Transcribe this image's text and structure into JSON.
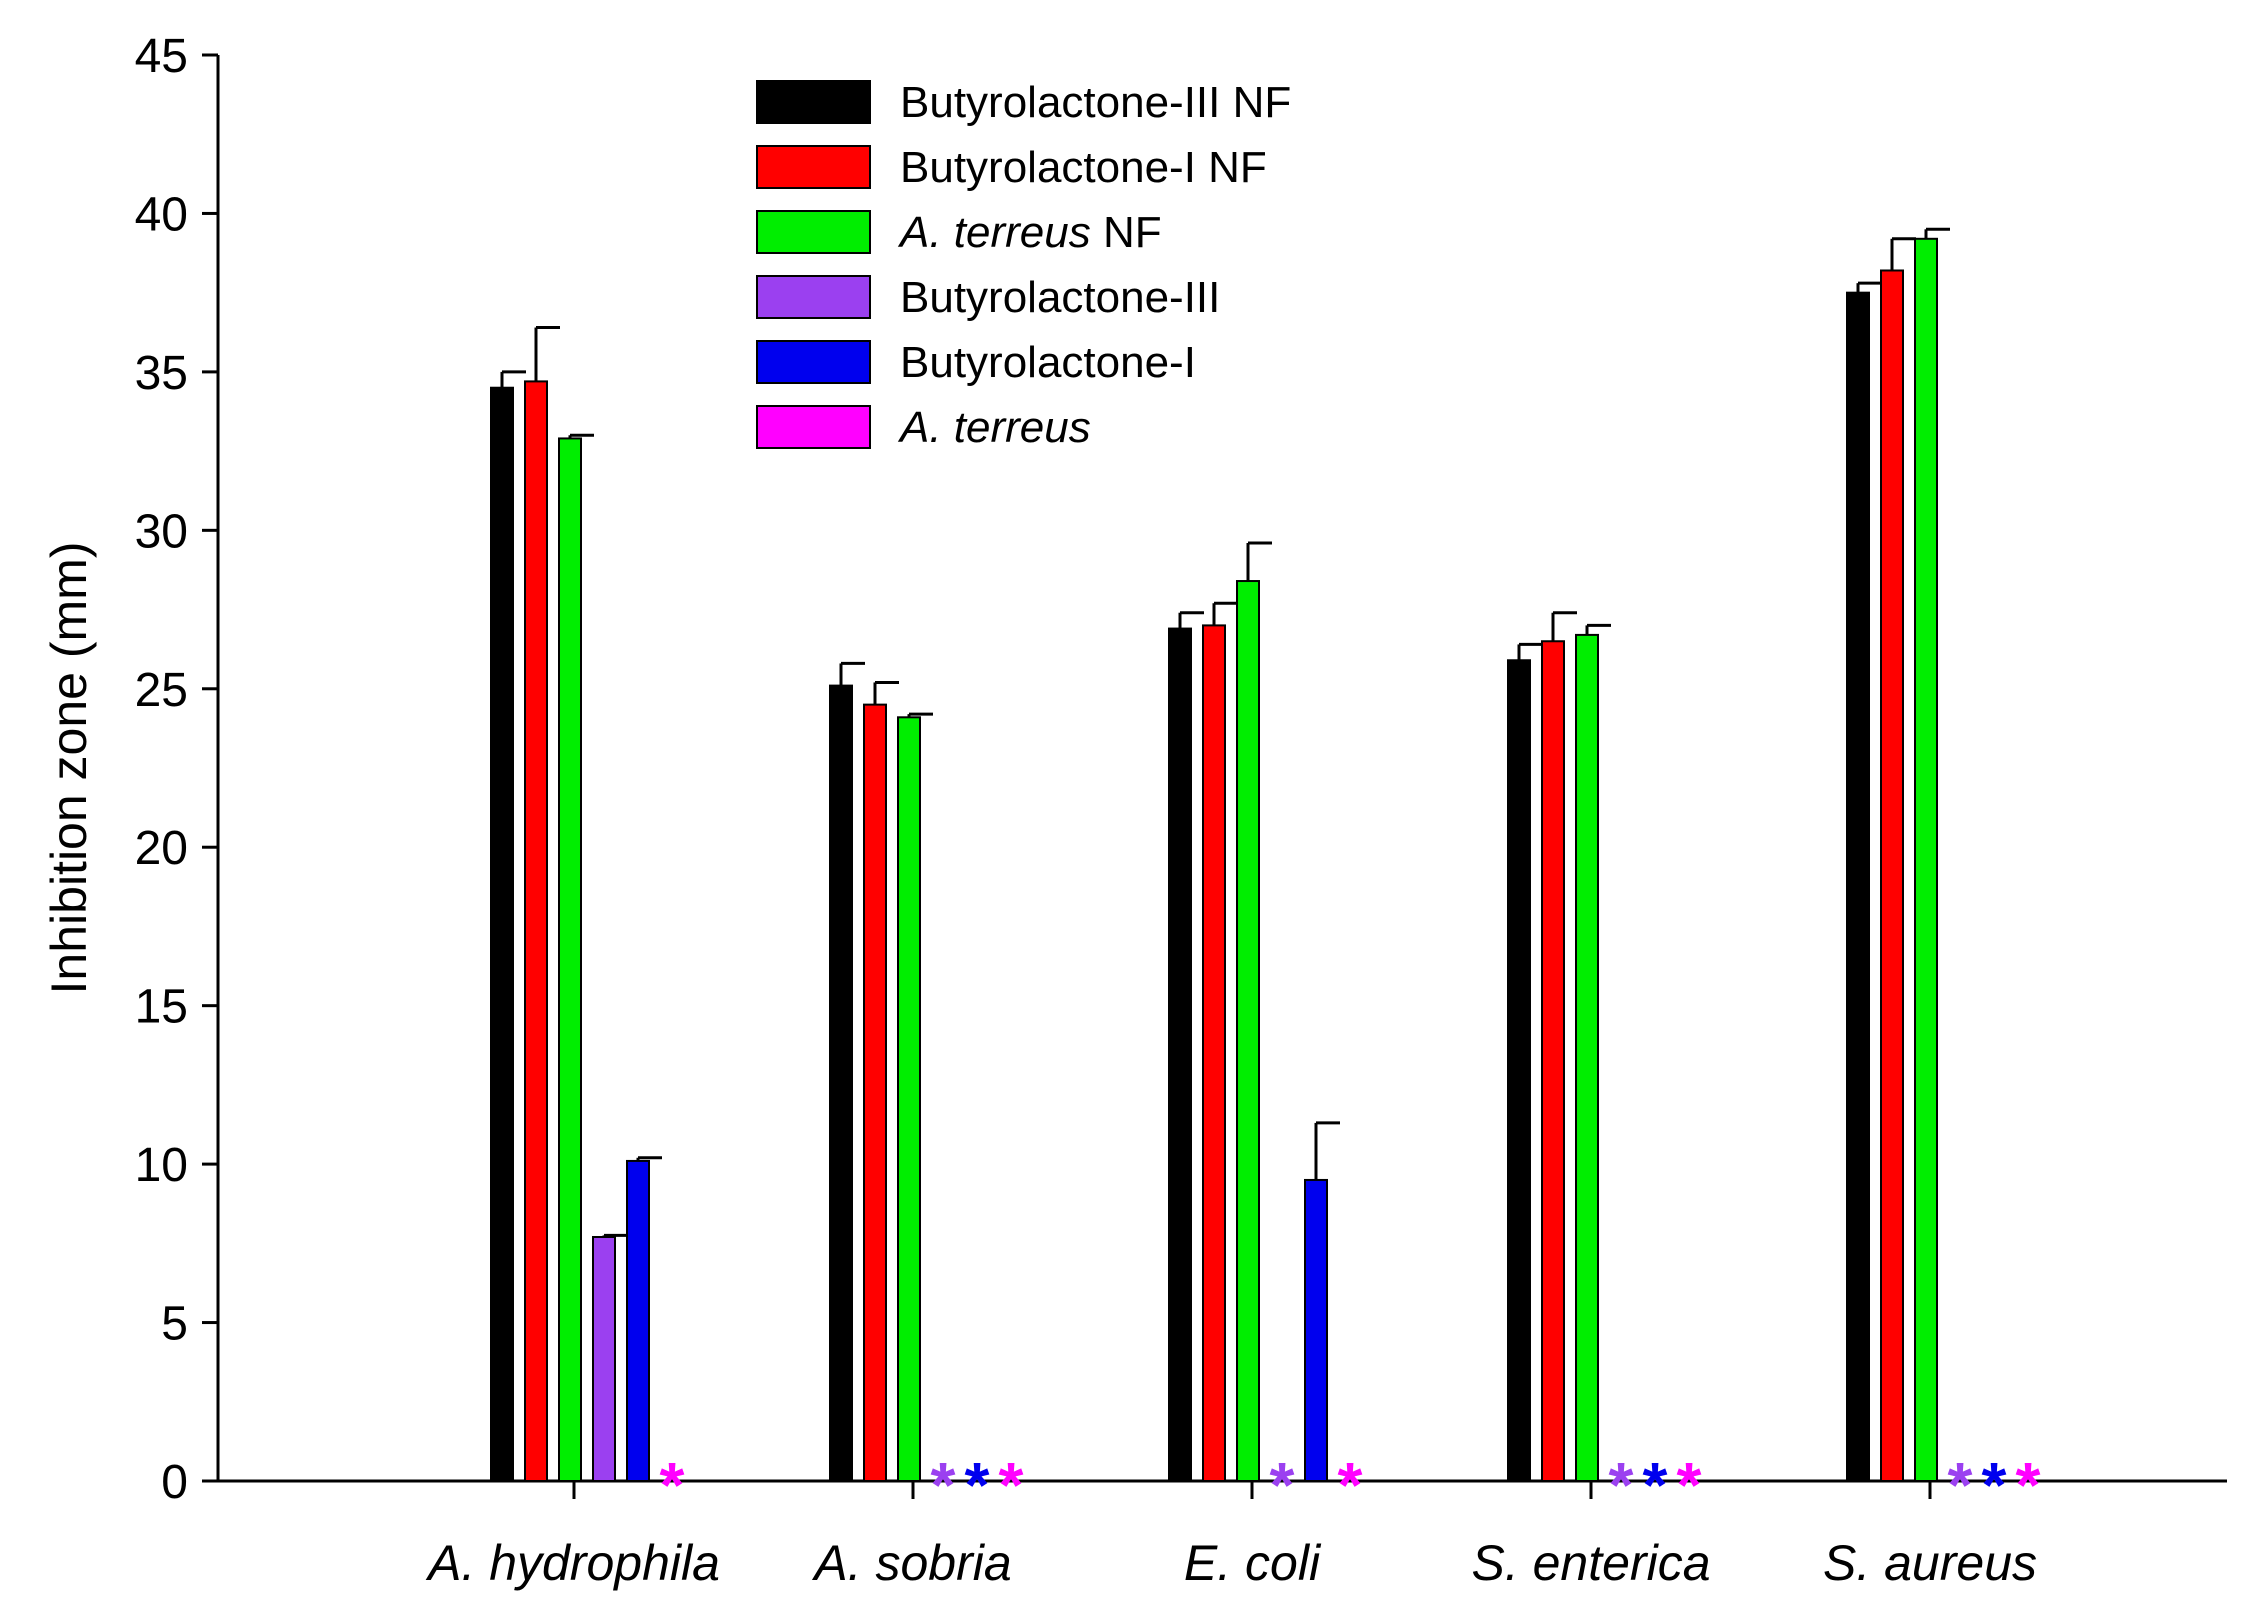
{
  "chart_data": {
    "type": "bar",
    "title": "",
    "xlabel": "",
    "ylabel": "Inhibition zone (mm)",
    "ylim": [
      0,
      45
    ],
    "yticks": [
      0,
      5,
      10,
      15,
      20,
      25,
      30,
      35,
      40,
      45
    ],
    "grid": false,
    "legend_position": "top-center",
    "categories": [
      "A. hydrophila",
      "A. sobria",
      "E. coli",
      "S. enterica",
      "S. aureus"
    ],
    "series": [
      {
        "name": "Butyrolactone-III NF",
        "legend_parts": [
          {
            "text": "Butyrolactone-III NF",
            "italic": false
          }
        ],
        "color": "#000000",
        "values": [
          34.5,
          25.1,
          26.9,
          25.9,
          37.5
        ],
        "errors": [
          0.5,
          0.7,
          0.5,
          0.5,
          0.3
        ]
      },
      {
        "name": "Butyrolactone-I NF",
        "legend_parts": [
          {
            "text": "Butyrolactone-I NF",
            "italic": false
          }
        ],
        "color": "#ff0000",
        "values": [
          34.7,
          24.5,
          27.0,
          26.5,
          38.2
        ],
        "errors": [
          1.7,
          0.7,
          0.7,
          0.9,
          1.0
        ]
      },
      {
        "name": "A. terreus NF",
        "legend_parts": [
          {
            "text": "A. terreus",
            "italic": true
          },
          {
            "text": " NF",
            "italic": false
          }
        ],
        "color": "#00ee00",
        "values": [
          32.9,
          24.1,
          28.4,
          26.7,
          39.2
        ],
        "errors": [
          0.1,
          0.1,
          1.2,
          0.3,
          0.3
        ]
      },
      {
        "name": "Butyrolactone-III",
        "legend_parts": [
          {
            "text": "Butyrolactone-III",
            "italic": false
          }
        ],
        "color": "#9b40f0",
        "values": [
          7.7,
          0,
          0,
          0,
          0
        ],
        "errors": [
          0.05,
          0,
          0,
          0,
          0
        ]
      },
      {
        "name": "Butyrolactone-I",
        "legend_parts": [
          {
            "text": "Butyrolactone-I",
            "italic": false
          }
        ],
        "color": "#0000ee",
        "values": [
          10.1,
          0,
          9.5,
          0,
          0
        ],
        "errors": [
          0.1,
          0,
          1.8,
          0,
          0
        ]
      },
      {
        "name": "A. terreus",
        "legend_parts": [
          {
            "text": "A. terreus",
            "italic": true
          }
        ],
        "color": "#ff00ff",
        "values": [
          0,
          0,
          0,
          0,
          0
        ],
        "errors": [
          0,
          0,
          0,
          0,
          0
        ]
      }
    ],
    "annotations": [
      {
        "category": 0,
        "series": 5,
        "text": "*"
      },
      {
        "category": 1,
        "series": 3,
        "text": "*"
      },
      {
        "category": 1,
        "series": 4,
        "text": "*"
      },
      {
        "category": 1,
        "series": 5,
        "text": "*"
      },
      {
        "category": 2,
        "series": 3,
        "text": "*"
      },
      {
        "category": 2,
        "series": 5,
        "text": "*"
      },
      {
        "category": 3,
        "series": 3,
        "text": "*"
      },
      {
        "category": 3,
        "series": 4,
        "text": "*"
      },
      {
        "category": 3,
        "series": 5,
        "text": "*"
      },
      {
        "category": 4,
        "series": 3,
        "text": "*"
      },
      {
        "category": 4,
        "series": 4,
        "text": "*"
      },
      {
        "category": 4,
        "series": 5,
        "text": "*"
      }
    ]
  }
}
